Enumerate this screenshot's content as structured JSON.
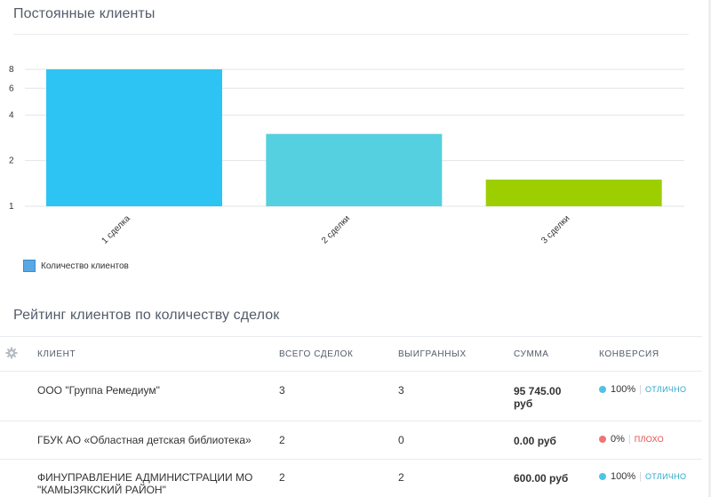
{
  "sections": {
    "chart_title": "Постоянные клиенты",
    "table_title": "Рейтинг клиентов по количеству сделок"
  },
  "chart_data": {
    "type": "bar",
    "scale": "log",
    "categories": [
      "1 сделка",
      "2 сделки",
      "3 сделки"
    ],
    "series": [
      {
        "name": "Количество клиентов",
        "values": [
          8,
          3,
          1.5
        ]
      }
    ],
    "colors": [
      "#2dc4f4",
      "#55d0e0",
      "#9dcf00"
    ],
    "y_ticks": [
      1,
      2,
      4,
      6,
      8
    ],
    "ylim": [
      1,
      8
    ],
    "grid": true,
    "legend": "bottom-left"
  },
  "legend": {
    "label": "Количество клиентов",
    "color": "#58a8e6"
  },
  "table": {
    "headers": {
      "client": "КЛИЕНТ",
      "total": "ВСЕГО СДЕЛОК",
      "won": "ВЫИГРАННЫХ",
      "sum": "СУММА",
      "conversion": "КОНВЕРСИЯ"
    },
    "rows": [
      {
        "client": "ООО \"Группа Ремедиум\"",
        "total": "3",
        "won": "3",
        "sum": "95 745.00 руб",
        "conversion": "100%",
        "status": "ОТЛИЧНО",
        "status_color": "#2fa7c9"
      },
      {
        "client": "ГБУК АО «Областная детская библиотека»",
        "total": "2",
        "won": "0",
        "sum": "0.00 руб",
        "conversion": "0%",
        "status": "ПЛОХО",
        "status_color": "#e04a46"
      },
      {
        "client": "ФИНУПРАВЛЕНИЕ АДМИНИСТРАЦИИ МО \"КАМЫЗЯКСКИЙ РАЙОН\"",
        "total": "2",
        "won": "2",
        "sum": "600.00 руб",
        "conversion": "100%",
        "status": "ОТЛИЧНО",
        "status_color": "#2fa7c9"
      }
    ]
  },
  "icons": {
    "settings": "gear-icon"
  }
}
